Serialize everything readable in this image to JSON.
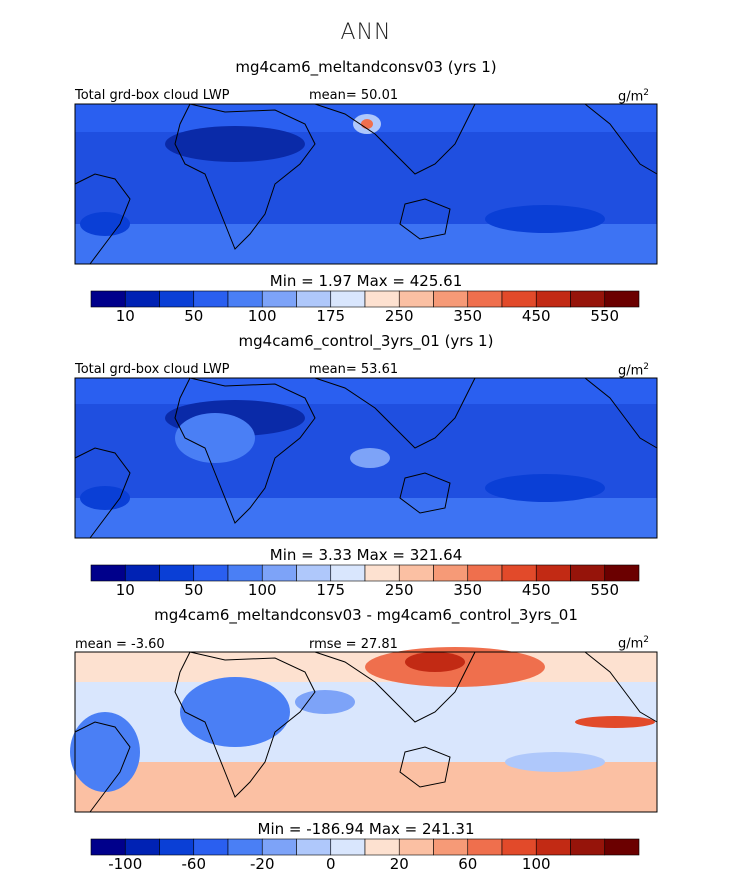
{
  "season": "ANN",
  "panels": [
    {
      "case_title": "mg4cam6_meltandconsv03 (yrs 1)",
      "field_label": "Total grd-box cloud LWP",
      "mean_label": "mean=  50.01",
      "units": "g/m",
      "units_sup": "2",
      "minmax_label": "Min =    1.97 Max = 425.61",
      "colorbar": {
        "colors": [
          "#00008b",
          "#0022b4",
          "#0a3fd6",
          "#2a5ff0",
          "#4a7ff5",
          "#7da3f8",
          "#afc8fb",
          "#d9e6fd",
          "#fde1d0",
          "#fbc0a3",
          "#f69a77",
          "#ef6f4d",
          "#e24a2a",
          "#c22a14",
          "#96140a",
          "#6b0000"
        ],
        "tick_labels": [
          "10",
          "50",
          "100",
          "175",
          "250",
          "350",
          "450",
          "550"
        ]
      }
    },
    {
      "case_title": "mg4cam6_control_3yrs_01 (yrs 1)",
      "field_label": "Total grd-box cloud LWP",
      "mean_label": "mean=  53.61",
      "units": "g/m",
      "units_sup": "2",
      "minmax_label": "Min =    3.33 Max = 321.64",
      "colorbar": {
        "colors": [
          "#00008b",
          "#0022b4",
          "#0a3fd6",
          "#2a5ff0",
          "#4a7ff5",
          "#7da3f8",
          "#afc8fb",
          "#d9e6fd",
          "#fde1d0",
          "#fbc0a3",
          "#f69a77",
          "#ef6f4d",
          "#e24a2a",
          "#c22a14",
          "#96140a",
          "#6b0000"
        ],
        "tick_labels": [
          "10",
          "50",
          "100",
          "175",
          "250",
          "350",
          "450",
          "550"
        ]
      }
    },
    {
      "case_title": "mg4cam6_meltandconsv03 - mg4cam6_control_3yrs_01",
      "field_label": "mean =  -3.60",
      "mean_label": "rmse =  27.81",
      "units": "g/m",
      "units_sup": "2",
      "minmax_label": "Min = -186.94 Max = 241.31",
      "colorbar": {
        "colors": [
          "#00008b",
          "#0022b4",
          "#0a3fd6",
          "#2a5ff0",
          "#4a7ff5",
          "#7da3f8",
          "#afc8fb",
          "#d9e6fd",
          "#fde1d0",
          "#fbc0a3",
          "#f69a77",
          "#ef6f4d",
          "#e24a2a",
          "#c22a14",
          "#96140a",
          "#6b0000"
        ],
        "tick_labels": [
          "-100",
          "-60",
          "-20",
          "0",
          "20",
          "60",
          "100"
        ]
      }
    }
  ],
  "chart_data": {
    "type": "heatmap",
    "description_panels": [
      "Test case LWP",
      "Control case LWP",
      "Difference"
    ]
  }
}
